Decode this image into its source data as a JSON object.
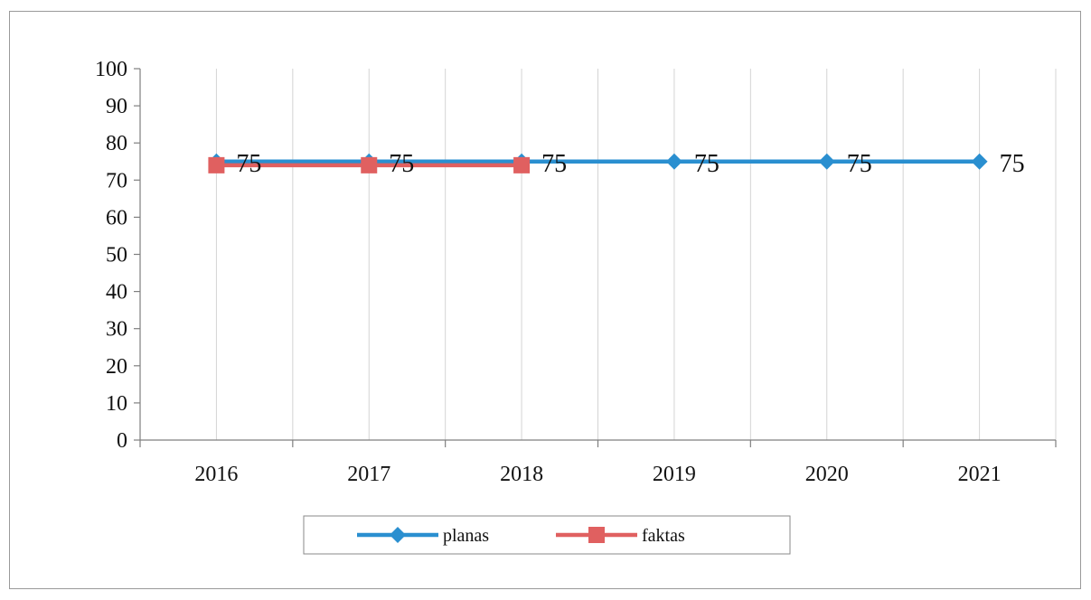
{
  "chart_data": {
    "type": "line",
    "x": [
      "2016",
      "2017",
      "2018",
      "2019",
      "2020",
      "2021"
    ],
    "ylim": [
      0,
      100
    ],
    "yticks": [
      0,
      10,
      20,
      30,
      40,
      50,
      60,
      70,
      80,
      90,
      100
    ],
    "grid": true,
    "legend_position": "bottom",
    "series": [
      {
        "name": "planas",
        "values": [
          75,
          75,
          75,
          75,
          75,
          75
        ],
        "color": "#2a8fd0",
        "marker": "diamond",
        "data_labels": [
          "75",
          "75",
          "75",
          "75",
          "75",
          "75"
        ]
      },
      {
        "name": "faktas",
        "values": [
          74,
          74,
          74,
          null,
          null,
          null
        ],
        "color": "#e06060",
        "marker": "square",
        "data_labels": []
      }
    ]
  }
}
